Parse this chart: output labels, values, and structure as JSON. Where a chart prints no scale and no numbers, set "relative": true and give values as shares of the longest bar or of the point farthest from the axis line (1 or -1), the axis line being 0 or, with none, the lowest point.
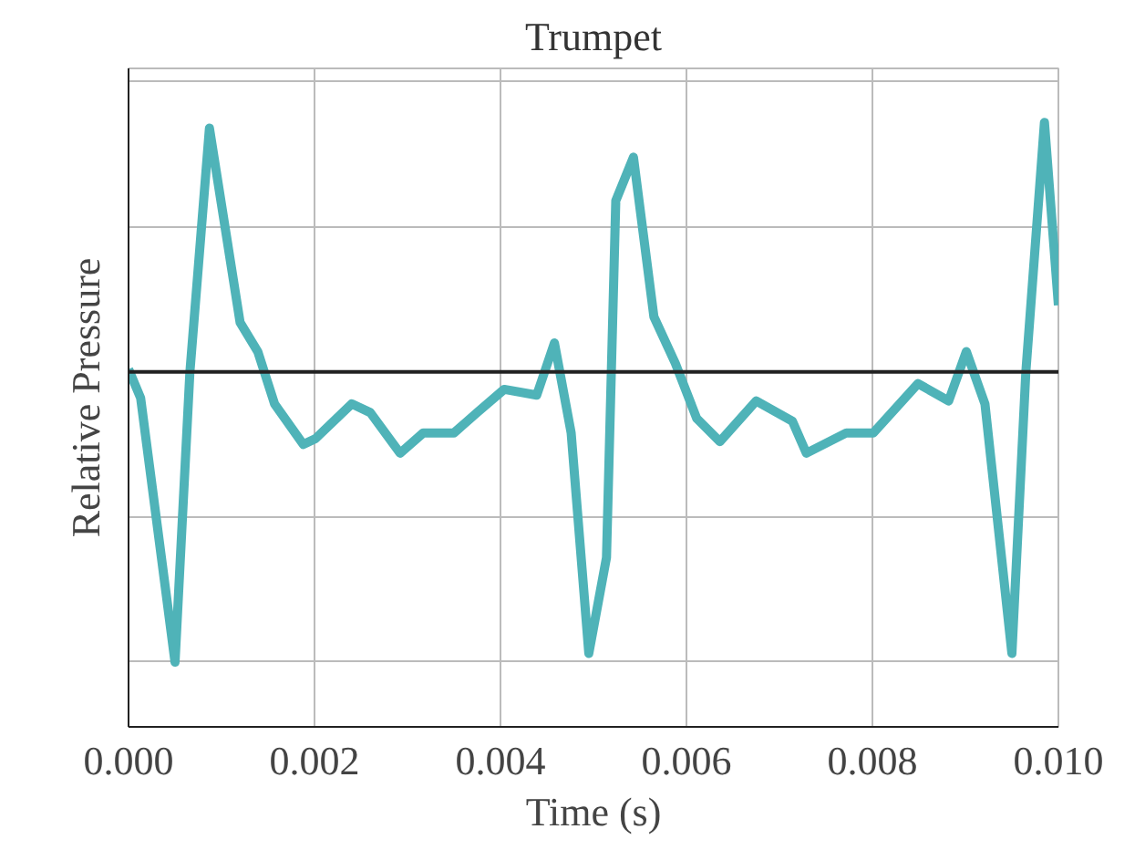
{
  "chart_data": {
    "type": "line",
    "title": "Trumpet",
    "xlabel": "Time (s)",
    "ylabel": "Relative Pressure",
    "relative": true,
    "grid": true,
    "marker": "none",
    "line_style": "solid",
    "xlim": [
      0,
      0.01
    ],
    "xticks": [
      {
        "value": 0,
        "label": "0.000"
      },
      {
        "value": 0.002,
        "label": "0.002"
      },
      {
        "value": 0.004,
        "label": "0.004"
      },
      {
        "value": 0.006,
        "label": "0.006"
      },
      {
        "value": 0.008,
        "label": "0.008"
      },
      {
        "value": 0.01,
        "label": "0.010"
      }
    ],
    "series": [
      {
        "color": "#4fb3b8",
        "x": [
          0,
          0.00013,
          0.0005,
          0.00066,
          0.00087,
          0.0012,
          0.00139,
          0.00157,
          0.00188,
          0.00201,
          0.0024,
          0.0026,
          0.00292,
          0.00317,
          0.0035,
          0.00375,
          0.00404,
          0.00439,
          0.00458,
          0.00476,
          0.00495,
          0.00514,
          0.00524,
          0.00543,
          0.00565,
          0.00588,
          0.00611,
          0.00636,
          0.00675,
          0.00714,
          0.00729,
          0.00772,
          0.00801,
          0.00849,
          0.00882,
          0.00901,
          0.00921,
          0.0095,
          0.00965,
          0.00985,
          0.01
        ],
        "values": [
          0.01,
          -0.09,
          -1.0,
          0.0,
          0.84,
          0.17,
          0.07,
          -0.11,
          -0.25,
          -0.23,
          -0.11,
          -0.14,
          -0.28,
          -0.21,
          -0.21,
          -0.14,
          -0.06,
          -0.08,
          0.1,
          -0.21,
          -0.97,
          -0.64,
          0.59,
          0.74,
          0.19,
          0.03,
          -0.16,
          -0.24,
          -0.1,
          -0.17,
          -0.28,
          -0.21,
          -0.21,
          -0.04,
          -0.1,
          0.07,
          -0.11,
          -0.97,
          0.0,
          0.86,
          0.23
        ]
      }
    ]
  }
}
